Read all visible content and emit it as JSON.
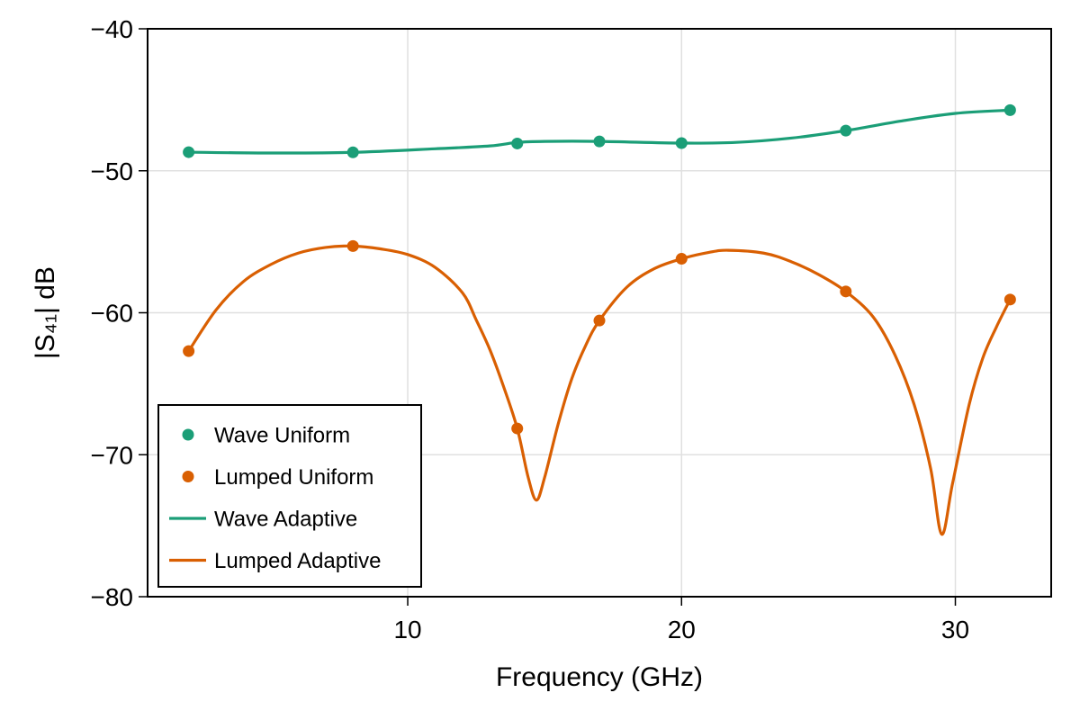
{
  "chart_data": {
    "type": "line",
    "title": "",
    "xlabel": "Frequency (GHz)",
    "ylabel": "|S₄₁| dB",
    "xlim": [
      0.5,
      33.5
    ],
    "ylim": [
      -80,
      -40
    ],
    "xticks": [
      10,
      20,
      30
    ],
    "xtick_labels": [
      "10",
      "20",
      "30"
    ],
    "yticks": [
      -80,
      -70,
      -60,
      -50,
      -40
    ],
    "ytick_labels": [
      "−80",
      "−70",
      "−60",
      "−50",
      "−40"
    ],
    "grid": true,
    "legend_position": "bottom-left",
    "colors": {
      "wave": "#1b9e77",
      "lumped": "#d95f02"
    },
    "series": [
      {
        "name": "Wave Uniform",
        "kind": "scatter",
        "color": "#1b9e77",
        "x": [
          2,
          8,
          14,
          17,
          20,
          26,
          32
        ],
        "y": [
          -48.69,
          -48.7,
          -48.08,
          -47.93,
          -48.05,
          -47.17,
          -45.73
        ]
      },
      {
        "name": "Lumped Uniform",
        "kind": "scatter",
        "color": "#d95f02",
        "x": [
          2,
          8,
          14,
          17,
          20,
          26,
          32
        ],
        "y": [
          -62.7,
          -55.3,
          -68.15,
          -60.55,
          -56.2,
          -58.5,
          -59.07
        ]
      },
      {
        "name": "Wave Adaptive",
        "kind": "line",
        "color": "#1b9e77",
        "x": [
          2,
          5,
          8,
          11,
          13,
          14,
          15,
          17,
          20,
          22,
          24,
          26,
          28,
          30,
          32
        ],
        "y": [
          -48.69,
          -48.75,
          -48.7,
          -48.45,
          -48.25,
          -48.0,
          -47.93,
          -47.93,
          -48.05,
          -48.0,
          -47.7,
          -47.17,
          -46.5,
          -45.96,
          -45.73
        ]
      },
      {
        "name": "Lumped Adaptive",
        "kind": "line",
        "color": "#d95f02",
        "x": [
          2,
          3,
          4,
          5,
          6,
          7,
          8,
          9,
          10,
          11,
          12,
          12.5,
          13,
          13.5,
          14,
          14.4,
          14.7,
          15,
          15.5,
          16,
          16.5,
          17,
          18,
          19,
          20,
          21,
          21.7,
          23,
          24,
          25,
          26,
          27,
          27.8,
          28.5,
          29.1,
          29.5,
          29.9,
          30.5,
          31,
          31.5,
          32
        ],
        "y": [
          -62.7,
          -59.8,
          -57.8,
          -56.6,
          -55.8,
          -55.4,
          -55.3,
          -55.5,
          -55.9,
          -56.8,
          -58.6,
          -60.5,
          -62.6,
          -65.2,
          -68.15,
          -71.6,
          -73.2,
          -71.6,
          -67.8,
          -64.6,
          -62.3,
          -60.55,
          -58.2,
          -56.9,
          -56.2,
          -55.75,
          -55.6,
          -55.8,
          -56.4,
          -57.3,
          -58.5,
          -60.3,
          -63.0,
          -66.5,
          -71.0,
          -75.6,
          -72.0,
          -66.5,
          -63.2,
          -61.0,
          -59.07
        ]
      }
    ],
    "legend": [
      {
        "label": "Wave Uniform",
        "marker": "circle",
        "color": "#1b9e77"
      },
      {
        "label": "Lumped Uniform",
        "marker": "circle",
        "color": "#d95f02"
      },
      {
        "label": "Wave Adaptive",
        "marker": "line",
        "color": "#1b9e77"
      },
      {
        "label": "Lumped Adaptive",
        "marker": "line",
        "color": "#d95f02"
      }
    ]
  }
}
